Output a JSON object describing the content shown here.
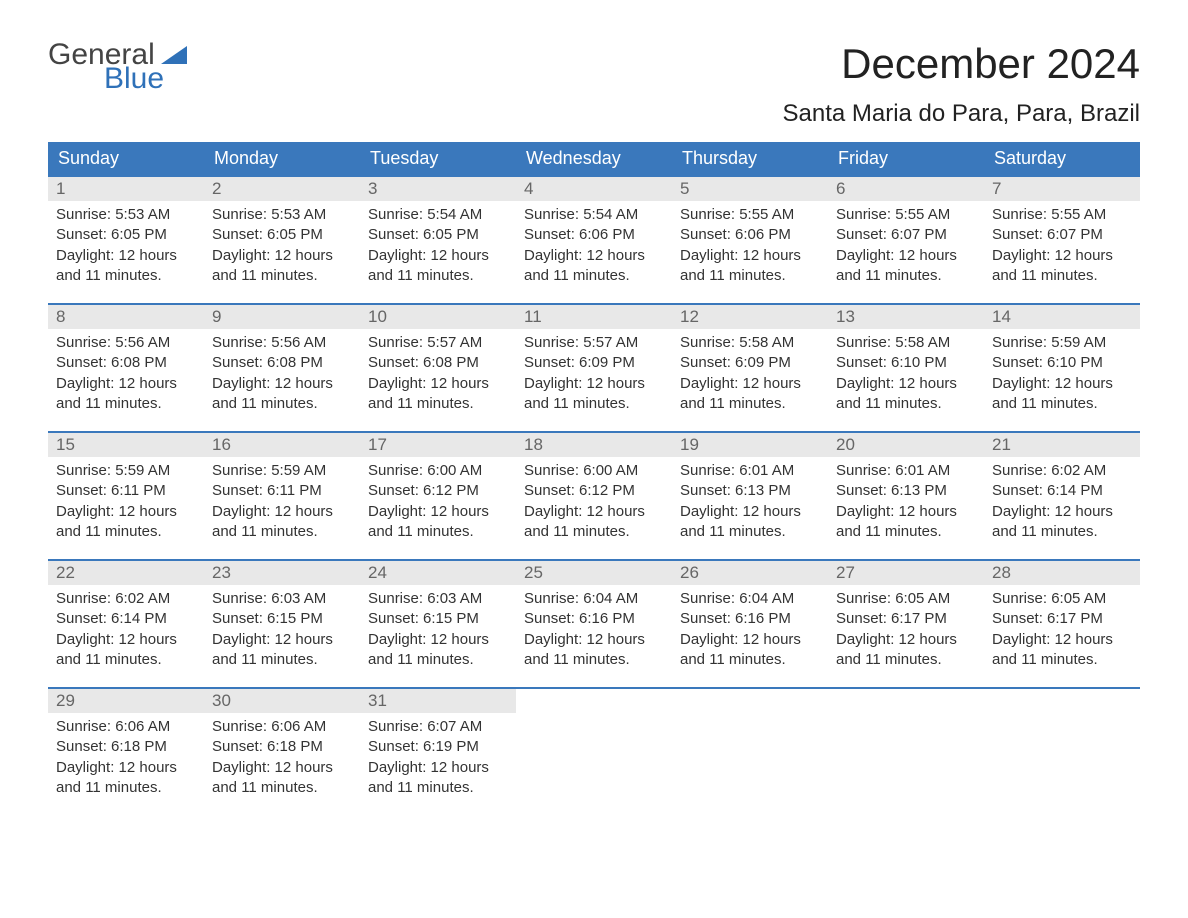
{
  "logo": {
    "word1": "General",
    "word2": "Blue"
  },
  "title": "December 2024",
  "subtitle": "Santa Maria do Para, Para, Brazil",
  "colors": {
    "header_bg": "#3a78bc",
    "header_text": "#ffffff",
    "daynum_bg": "#e8e8e8",
    "daynum_text": "#666666",
    "body_text": "#333333",
    "logo_gray": "#444444",
    "logo_blue": "#2f71b8",
    "page_bg": "#ffffff"
  },
  "weekdays": [
    "Sunday",
    "Monday",
    "Tuesday",
    "Wednesday",
    "Thursday",
    "Friday",
    "Saturday"
  ],
  "labels": {
    "sunrise": "Sunrise: ",
    "sunset": "Sunset: ",
    "daylight": "Daylight: "
  },
  "weeks": [
    [
      {
        "n": "1",
        "sunrise": "5:53 AM",
        "sunset": "6:05 PM",
        "daylight": "12 hours and 11 minutes."
      },
      {
        "n": "2",
        "sunrise": "5:53 AM",
        "sunset": "6:05 PM",
        "daylight": "12 hours and 11 minutes."
      },
      {
        "n": "3",
        "sunrise": "5:54 AM",
        "sunset": "6:05 PM",
        "daylight": "12 hours and 11 minutes."
      },
      {
        "n": "4",
        "sunrise": "5:54 AM",
        "sunset": "6:06 PM",
        "daylight": "12 hours and 11 minutes."
      },
      {
        "n": "5",
        "sunrise": "5:55 AM",
        "sunset": "6:06 PM",
        "daylight": "12 hours and 11 minutes."
      },
      {
        "n": "6",
        "sunrise": "5:55 AM",
        "sunset": "6:07 PM",
        "daylight": "12 hours and 11 minutes."
      },
      {
        "n": "7",
        "sunrise": "5:55 AM",
        "sunset": "6:07 PM",
        "daylight": "12 hours and 11 minutes."
      }
    ],
    [
      {
        "n": "8",
        "sunrise": "5:56 AM",
        "sunset": "6:08 PM",
        "daylight": "12 hours and 11 minutes."
      },
      {
        "n": "9",
        "sunrise": "5:56 AM",
        "sunset": "6:08 PM",
        "daylight": "12 hours and 11 minutes."
      },
      {
        "n": "10",
        "sunrise": "5:57 AM",
        "sunset": "6:08 PM",
        "daylight": "12 hours and 11 minutes."
      },
      {
        "n": "11",
        "sunrise": "5:57 AM",
        "sunset": "6:09 PM",
        "daylight": "12 hours and 11 minutes."
      },
      {
        "n": "12",
        "sunrise": "5:58 AM",
        "sunset": "6:09 PM",
        "daylight": "12 hours and 11 minutes."
      },
      {
        "n": "13",
        "sunrise": "5:58 AM",
        "sunset": "6:10 PM",
        "daylight": "12 hours and 11 minutes."
      },
      {
        "n": "14",
        "sunrise": "5:59 AM",
        "sunset": "6:10 PM",
        "daylight": "12 hours and 11 minutes."
      }
    ],
    [
      {
        "n": "15",
        "sunrise": "5:59 AM",
        "sunset": "6:11 PM",
        "daylight": "12 hours and 11 minutes."
      },
      {
        "n": "16",
        "sunrise": "5:59 AM",
        "sunset": "6:11 PM",
        "daylight": "12 hours and 11 minutes."
      },
      {
        "n": "17",
        "sunrise": "6:00 AM",
        "sunset": "6:12 PM",
        "daylight": "12 hours and 11 minutes."
      },
      {
        "n": "18",
        "sunrise": "6:00 AM",
        "sunset": "6:12 PM",
        "daylight": "12 hours and 11 minutes."
      },
      {
        "n": "19",
        "sunrise": "6:01 AM",
        "sunset": "6:13 PM",
        "daylight": "12 hours and 11 minutes."
      },
      {
        "n": "20",
        "sunrise": "6:01 AM",
        "sunset": "6:13 PM",
        "daylight": "12 hours and 11 minutes."
      },
      {
        "n": "21",
        "sunrise": "6:02 AM",
        "sunset": "6:14 PM",
        "daylight": "12 hours and 11 minutes."
      }
    ],
    [
      {
        "n": "22",
        "sunrise": "6:02 AM",
        "sunset": "6:14 PM",
        "daylight": "12 hours and 11 minutes."
      },
      {
        "n": "23",
        "sunrise": "6:03 AM",
        "sunset": "6:15 PM",
        "daylight": "12 hours and 11 minutes."
      },
      {
        "n": "24",
        "sunrise": "6:03 AM",
        "sunset": "6:15 PM",
        "daylight": "12 hours and 11 minutes."
      },
      {
        "n": "25",
        "sunrise": "6:04 AM",
        "sunset": "6:16 PM",
        "daylight": "12 hours and 11 minutes."
      },
      {
        "n": "26",
        "sunrise": "6:04 AM",
        "sunset": "6:16 PM",
        "daylight": "12 hours and 11 minutes."
      },
      {
        "n": "27",
        "sunrise": "6:05 AM",
        "sunset": "6:17 PM",
        "daylight": "12 hours and 11 minutes."
      },
      {
        "n": "28",
        "sunrise": "6:05 AM",
        "sunset": "6:17 PM",
        "daylight": "12 hours and 11 minutes."
      }
    ],
    [
      {
        "n": "29",
        "sunrise": "6:06 AM",
        "sunset": "6:18 PM",
        "daylight": "12 hours and 11 minutes."
      },
      {
        "n": "30",
        "sunrise": "6:06 AM",
        "sunset": "6:18 PM",
        "daylight": "12 hours and 11 minutes."
      },
      {
        "n": "31",
        "sunrise": "6:07 AM",
        "sunset": "6:19 PM",
        "daylight": "12 hours and 11 minutes."
      },
      null,
      null,
      null,
      null
    ]
  ]
}
